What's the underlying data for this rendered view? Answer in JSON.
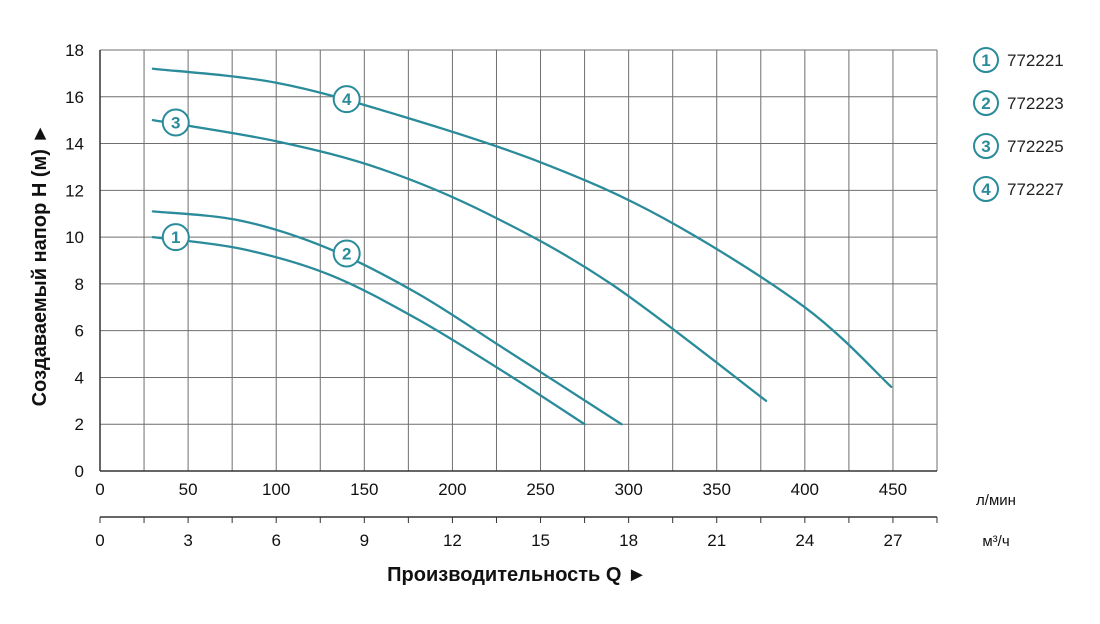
{
  "chart_data": {
    "type": "line",
    "ylabel": "Создаваемый напор Н (м) ►",
    "xlabel": "Производительность Q ►",
    "ylim": [
      0,
      18
    ],
    "yticks": [
      "0",
      "2",
      "4",
      "6",
      "8",
      "10",
      "12",
      "14",
      "16",
      "18"
    ],
    "xlim": [
      0,
      475
    ],
    "xticks_lpm": [
      "0",
      "50",
      "100",
      "150",
      "200",
      "250",
      "300",
      "350",
      "400",
      "450"
    ],
    "xticks_m3h": [
      "0",
      "3",
      "6",
      "9",
      "12",
      "15",
      "18",
      "21",
      "24",
      "27"
    ],
    "x_unit_lpm": "л/мин",
    "x_unit_m3h": "м³/ч",
    "grid": true,
    "legend_position": "right",
    "color": "#2a8b9a",
    "series": [
      {
        "marker": "1",
        "name": "772221",
        "x": [
          30,
          80,
          130,
          180,
          230,
          275
        ],
        "y": [
          10.0,
          9.5,
          8.4,
          6.5,
          4.2,
          2.0
        ],
        "label_at": [
          43,
          10.0
        ]
      },
      {
        "marker": "2",
        "name": "772223",
        "x": [
          30,
          80,
          130,
          180,
          230,
          296
        ],
        "y": [
          11.1,
          10.7,
          9.5,
          7.6,
          5.2,
          2.0
        ],
        "label_at": [
          140,
          9.3
        ]
      },
      {
        "marker": "3",
        "name": "772225",
        "x": [
          30,
          100,
          160,
          220,
          290,
          378
        ],
        "y": [
          15.0,
          14.1,
          12.9,
          11.0,
          8.0,
          3.0
        ],
        "label_at": [
          43,
          14.9
        ]
      },
      {
        "marker": "4",
        "name": "772227",
        "x": [
          30,
          100,
          170,
          250,
          320,
          400,
          449
        ],
        "y": [
          17.2,
          16.6,
          15.2,
          13.2,
          10.8,
          7.0,
          3.6
        ],
        "label_at": [
          140,
          15.9
        ]
      }
    ]
  }
}
